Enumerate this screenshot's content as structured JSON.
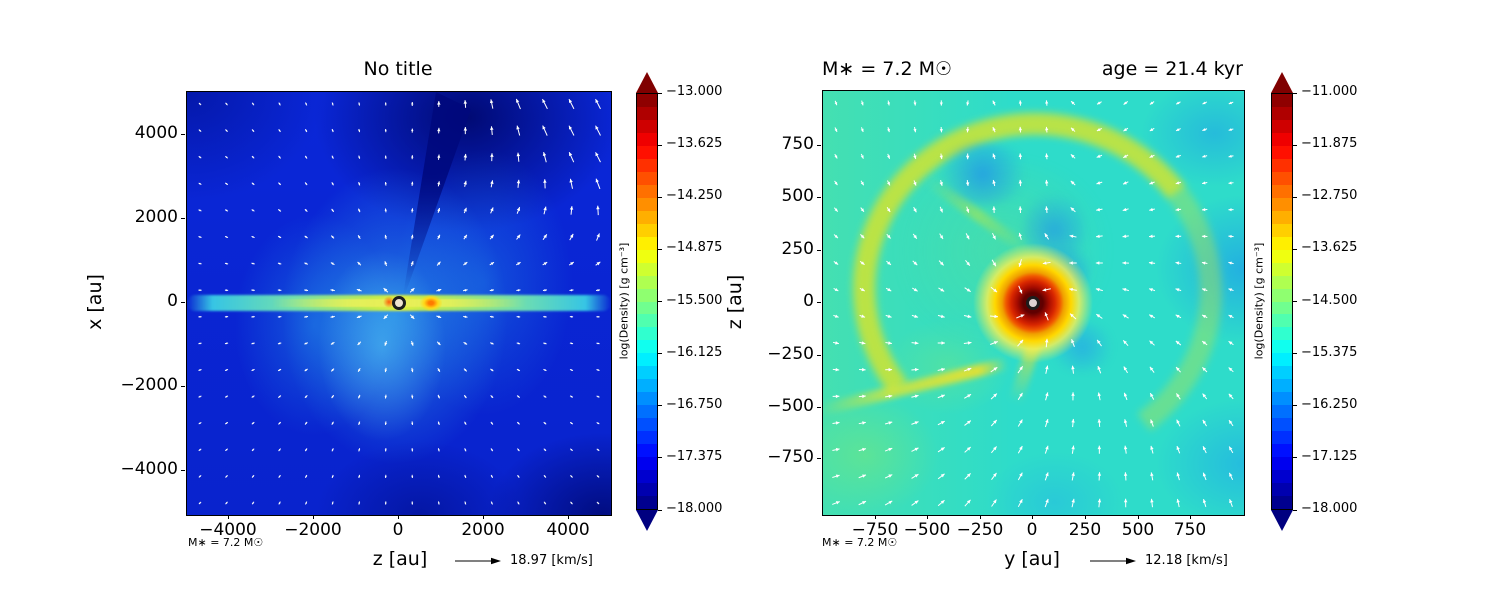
{
  "figure": {
    "background": "#ffffff",
    "colormap": "jet",
    "quiver_color": "#ffffff"
  },
  "left_panel": {
    "title": "No title",
    "xlabel": "z [au]",
    "ylabel": "x [au]",
    "xtick_labels": [
      "−4000",
      "−2000",
      "0",
      "2000",
      "4000"
    ],
    "ytick_labels": [
      "4000",
      "2000",
      "0",
      "−2000",
      "−4000"
    ],
    "colorbar_label": "log(Density) [g cm⁻³]",
    "colorbar_ticks": [
      "−13.000",
      "−13.625",
      "−14.250",
      "−14.875",
      "−15.500",
      "−16.125",
      "−16.750",
      "−17.375",
      "−18.000"
    ],
    "mass_annotation": "M∗ = 7.2 M☉",
    "speed_annotation": "18.97 [km/s]"
  },
  "right_panel": {
    "title_left": "M∗ = 7.2 M☉",
    "title_right": "age = 21.4 kyr",
    "xlabel": "y [au]",
    "ylabel": "z [au]",
    "xtick_labels": [
      "−750",
      "−500",
      "−250",
      "0",
      "250",
      "500",
      "750"
    ],
    "ytick_labels": [
      "750",
      "500",
      "250",
      "0",
      "−250",
      "−500",
      "−750"
    ],
    "colorbar_label": "log(Density) [g cm⁻³]",
    "colorbar_ticks": [
      "−11.000",
      "−11.875",
      "−12.750",
      "−13.625",
      "−14.500",
      "−15.375",
      "−16.250",
      "−17.125",
      "−18.000"
    ],
    "mass_annotation": "M∗ = 7.2 M☉",
    "speed_annotation": "12.18 [km/s]"
  },
  "chart_data": [
    {
      "type": "heatmap",
      "title": "No title",
      "xlabel": "z [au]",
      "ylabel": "x [au]",
      "xlim": [
        -5000,
        5000
      ],
      "ylim": [
        -5000,
        5000
      ],
      "xticks": [
        -4000,
        -2000,
        0,
        2000,
        4000
      ],
      "yticks": [
        4000,
        2000,
        0,
        -2000,
        -4000
      ],
      "colormap": "jet",
      "colorbar": {
        "label": "log(Density) [g cm⁻³]",
        "ticks": [
          -13.0,
          -13.625,
          -14.25,
          -14.875,
          -15.5,
          -16.125,
          -16.75,
          -17.375,
          -18.0
        ],
        "range": [
          -18.0,
          -13.0
        ],
        "extend": "both"
      },
      "overlays": {
        "quiver": true,
        "quiver_key_speed": "18.97 [km/s]",
        "sink_marker_au": [
          0,
          0
        ],
        "bright_clump_au": [
          750,
          0
        ],
        "annotation": "M∗ = 7.2 M☉"
      },
      "description": "Edge-on log-density slice: bright green-yellow disk midplane along z at x≈0, blue envelope, cyan outflow fan around center, dark navy cavities at upper right and lower right."
    },
    {
      "type": "heatmap",
      "title": "M∗ = 7.2 M☉   age = 21.4 kyr",
      "xlabel": "y [au]",
      "ylabel": "z [au]",
      "xlim": [
        -1000,
        1000
      ],
      "ylim": [
        -1000,
        1000
      ],
      "xticks": [
        -750,
        -500,
        -250,
        0,
        250,
        500,
        750
      ],
      "yticks": [
        750,
        500,
        250,
        0,
        -250,
        -500,
        -750
      ],
      "colormap": "jet",
      "colorbar": {
        "label": "log(Density) [g cm⁻³]",
        "ticks": [
          -11.0,
          -11.875,
          -12.75,
          -13.625,
          -14.5,
          -15.375,
          -16.25,
          -17.125,
          -18.0
        ],
        "range": [
          -18.0,
          -11.0
        ],
        "extend": "both"
      },
      "overlays": {
        "quiver": true,
        "quiver_key_speed": "12.18 [km/s]",
        "sink_marker_au": [
          0,
          0
        ],
        "annotation": "M∗ = 7.2 M☉"
      },
      "description": "Face-on log-density slice: dark-red dense core at origin with yellow-orange halo, large yellow-green bubble arc above center with blue cavities inside, turquoise background, blue lower-right region."
    }
  ]
}
